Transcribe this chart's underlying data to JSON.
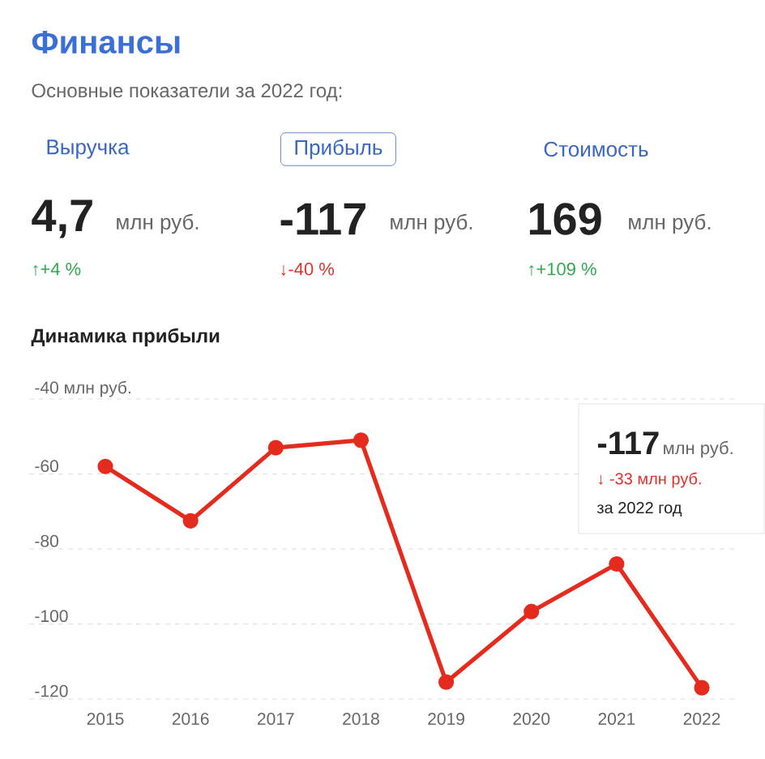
{
  "chart_data": [
    {
      "type": "other",
      "title": "Финансы",
      "subtitle": "Основные показатели за 2022 год:",
      "annotations": [
        "Выручка",
        "Прибыль",
        "Стоимость",
        "4,7",
        "млн руб.",
        "↑+4 %",
        "-117",
        "млн руб.",
        "↓-40 %",
        "169",
        "млн руб.",
        "↑+109 %"
      ]
    },
    {
      "type": "line",
      "title": "Динамика прибыли",
      "categories": [
        "2015",
        "2016",
        "2017",
        "2018",
        "2019",
        "2020",
        "2021",
        "2022"
      ],
      "series": [
        {
          "color": "#e52b1e",
          "values": [
            -58,
            -72.5,
            -53,
            -51,
            -115.5,
            -96.7,
            -84,
            -117
          ]
        }
      ],
      "ylim": [
        -120,
        -40
      ],
      "yticks": [
        {
          "value": -40,
          "label": "-40 млн руб."
        },
        -60,
        -80,
        -100,
        -120
      ],
      "grid": "y",
      "marker": "circle",
      "line_style": "solid",
      "annotations": [
        "-117",
        "млн руб.",
        "↓ -33 млн руб.",
        "за 2022 год"
      ]
    }
  ]
}
